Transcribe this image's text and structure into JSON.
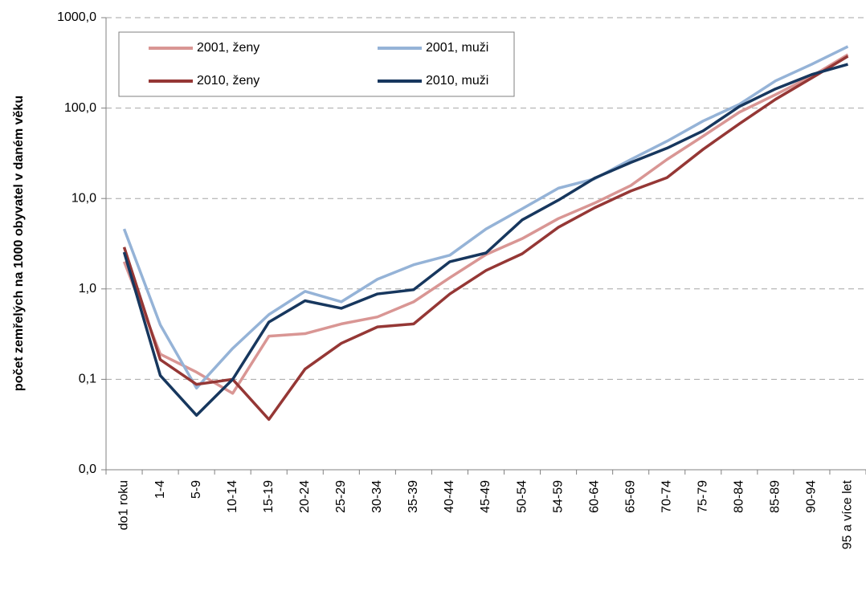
{
  "chart_data": {
    "type": "line",
    "y_label": "počet zemřelých na 1000 obyvatel v daném věku",
    "categories": [
      "do1 roku",
      "1-4",
      "5-9",
      "10-14",
      "15-19",
      "20-24",
      "25-29",
      "30-34",
      "35-39",
      "40-44",
      "45-49",
      "50-54",
      "54-59",
      "60-64",
      "65-69",
      "70-74",
      "75-79",
      "80-84",
      "85-89",
      "90-94",
      "95 a více let"
    ],
    "series": [
      {
        "name": "2001, ženy",
        "color": "#d99694",
        "values": [
          2.0,
          0.19,
          0.12,
          0.07,
          0.3,
          0.32,
          0.41,
          0.49,
          0.72,
          1.33,
          2.4,
          3.6,
          6.0,
          8.9,
          13.9,
          27,
          49,
          90,
          141,
          225,
          390
        ]
      },
      {
        "name": "2001, muži",
        "color": "#95b3d7",
        "values": [
          4.6,
          0.4,
          0.08,
          0.22,
          0.52,
          0.94,
          0.72,
          1.28,
          1.85,
          2.36,
          4.6,
          7.7,
          13,
          16.5,
          27,
          43,
          72,
          110,
          200,
          305,
          480
        ]
      },
      {
        "name": "2010, ženy",
        "color": "#953735",
        "values": [
          2.9,
          0.165,
          0.088,
          0.1,
          0.036,
          0.13,
          0.25,
          0.38,
          0.41,
          0.88,
          1.6,
          2.45,
          4.8,
          7.9,
          12.1,
          17,
          35,
          67,
          125,
          215,
          375
        ]
      },
      {
        "name": "2010, muži",
        "color": "#17375e",
        "values": [
          2.55,
          0.11,
          0.04,
          0.1,
          0.43,
          0.74,
          0.61,
          0.88,
          0.98,
          2.0,
          2.5,
          5.8,
          9.6,
          16.8,
          25,
          36,
          56,
          104,
          163,
          235,
          305
        ]
      }
    ],
    "log_scale": true,
    "ylim": [
      0.01,
      1000
    ],
    "yticks": [
      {
        "value": 0.01,
        "label": "0,0"
      },
      {
        "value": 0.1,
        "label": "0,1"
      },
      {
        "value": 1,
        "label": "1,0"
      },
      {
        "value": 10,
        "label": "10,0"
      },
      {
        "value": 100,
        "label": "100,0"
      },
      {
        "value": 1000,
        "label": "1000,0"
      }
    ],
    "grid": true
  }
}
